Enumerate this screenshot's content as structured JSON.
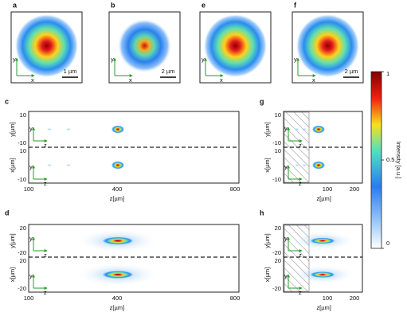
{
  "top_panels": [
    {
      "label": "a",
      "scale": "1 µm"
    },
    {
      "label": "b",
      "scale": "2 µm"
    },
    {
      "label": "e"
    },
    {
      "label": "f",
      "scale": "2 µm"
    }
  ],
  "axis_letters": {
    "x": "x",
    "y": "y",
    "z": "z"
  },
  "profile_panels": [
    {
      "label": "c",
      "y_label": "y[µm]",
      "x_label": "x[µm]",
      "z_label": "z[µm]",
      "top_ticks": [
        10,
        -10
      ],
      "bottom_ticks": [
        10,
        -10
      ],
      "z_ticks": [
        100,
        400,
        800
      ]
    },
    {
      "label": "d",
      "y_label": "y[µm]",
      "x_label": "x[µm]",
      "z_label": "z[µm]",
      "top_ticks": [
        20,
        -20
      ],
      "bottom_ticks": [
        20,
        -20
      ],
      "z_ticks": [
        100,
        400,
        800
      ]
    },
    {
      "label": "g",
      "y_label": "y[µm]",
      "x_label": "x[µm]",
      "z_label": "z[µm]",
      "top_ticks": [
        10,
        -10
      ],
      "bottom_ticks": [
        10,
        -10
      ],
      "z_ticks": [
        100,
        200
      ]
    },
    {
      "label": "h",
      "y_label": "y[µm]",
      "x_label": "x[µm]",
      "z_label": "z[µm]",
      "top_ticks": [
        20,
        -20
      ],
      "bottom_ticks": [
        20,
        -20
      ],
      "z_ticks": [
        100,
        200
      ]
    }
  ],
  "colorbar": {
    "ticks": [
      1,
      0.5,
      0
    ],
    "label": "Intensity [a.u.]"
  }
}
